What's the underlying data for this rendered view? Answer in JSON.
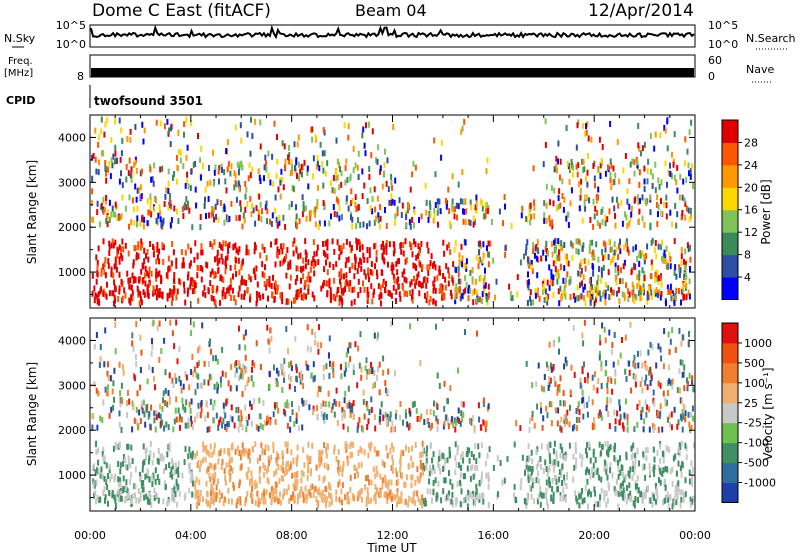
{
  "header": {
    "title": "Dome C East (fitACF)",
    "beam": "Beam 04",
    "date": "12/Apr/2014"
  },
  "top_panels": {
    "nsky_label": "N.Sky",
    "nsky_ticks": [
      "10^5",
      "10^0"
    ],
    "nsearch_label": "N.Search",
    "nsearch_ticks": [
      "10^5",
      "10^0"
    ],
    "freq_label": "Freq.",
    "freq_unit": "[MHz]",
    "freq_ticks": [
      "8"
    ],
    "nave_label": "Nave",
    "nave_ticks": [
      "60",
      "0"
    ],
    "cpid_label": "CPID",
    "cpid_value": "twofsound 3501"
  },
  "chart_data": [
    {
      "type": "heatmap",
      "panel": "power",
      "ylabel": "Slant Range [km]",
      "ylim": [
        200,
        4500
      ],
      "yticks": [
        "4000",
        "3000",
        "2000",
        "1000"
      ],
      "colorbar_label": "Power [dB]",
      "colorbar_ticks": [
        "28",
        "24",
        "20",
        "16",
        "12",
        "8",
        "4"
      ],
      "colors": [
        "#0000ff",
        "#2d4fa3",
        "#3a8a5a",
        "#7fc35a",
        "#ffd700",
        "#ff9900",
        "#ff5500",
        "#e00000"
      ]
    },
    {
      "type": "heatmap",
      "panel": "velocity",
      "ylabel": "Slant Range [km]",
      "ylim": [
        200,
        4500
      ],
      "yticks": [
        "4000",
        "3000",
        "2000",
        "1000"
      ],
      "colorbar_label": "Velocity [m s⁻¹]",
      "colorbar_ticks": [
        "1000",
        "500",
        "100",
        "25",
        "-25",
        "-100",
        "-500",
        "-1000"
      ],
      "colors": [
        "#1f3fa8",
        "#2e6da0",
        "#3f8f63",
        "#6fc050",
        "#c8c8c8",
        "#f0b070",
        "#f08030",
        "#f05010",
        "#e01010"
      ]
    }
  ],
  "x_axis": {
    "xlabel": "Time UT",
    "ticks": [
      "00:00",
      "04:00",
      "08:00",
      "12:00",
      "16:00",
      "20:00",
      "00:00"
    ]
  }
}
